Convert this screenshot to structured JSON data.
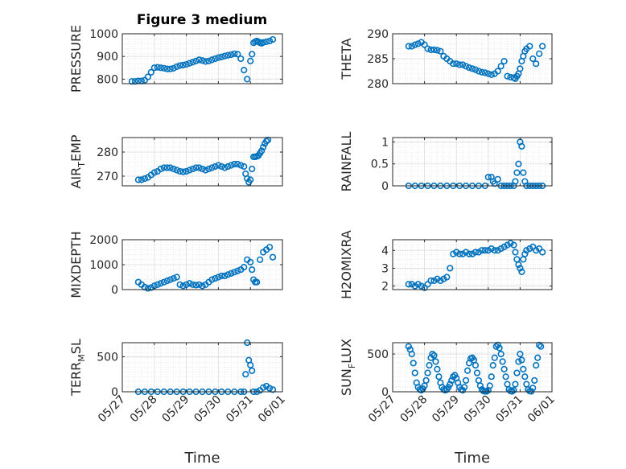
{
  "figure": {
    "title": "Figure 3 medium",
    "x_tick_labels": [
      "05/27",
      "05/28",
      "05/29",
      "05/30",
      "05/31",
      "06/01"
    ],
    "xlabel": "Time",
    "marker_color": "#0072BD",
    "grid_color": "#d9d9d9",
    "axis_color": "#262626"
  },
  "chart_data": [
    {
      "type": "scatter",
      "ylabel_main": "PRESSURE",
      "ylabel_sub": "",
      "xlim": [
        0,
        5
      ],
      "ylim": [
        780,
        1000
      ],
      "yticks": [
        800,
        900,
        1000
      ],
      "ytick_labels": [
        "800",
        "900",
        "1000"
      ],
      "x": [
        0.3,
        0.4,
        0.5,
        0.6,
        0.7,
        0.8,
        0.9,
        1.0,
        1.1,
        1.2,
        1.3,
        1.4,
        1.5,
        1.6,
        1.7,
        1.8,
        1.9,
        2.0,
        2.1,
        2.2,
        2.3,
        2.4,
        2.5,
        2.6,
        2.7,
        2.8,
        2.9,
        3.0,
        3.1,
        3.2,
        3.3,
        3.4,
        3.5,
        3.6,
        3.7,
        3.8,
        3.9,
        4.0,
        4.05,
        4.1,
        4.15,
        4.2,
        4.25,
        4.3,
        4.35,
        4.4,
        4.5,
        4.6,
        4.7
      ],
      "y": [
        790,
        790,
        792,
        792,
        795,
        810,
        830,
        850,
        852,
        850,
        848,
        845,
        845,
        848,
        855,
        860,
        862,
        865,
        870,
        875,
        880,
        885,
        882,
        878,
        880,
        885,
        890,
        895,
        898,
        902,
        905,
        908,
        912,
        910,
        890,
        840,
        800,
        880,
        910,
        960,
        965,
        968,
        965,
        960,
        958,
        962,
        965,
        968,
        975
      ]
    },
    {
      "type": "scatter",
      "ylabel_main": "THETA",
      "ylabel_sub": "",
      "xlim": [
        0,
        5
      ],
      "ylim": [
        280,
        290
      ],
      "yticks": [
        280,
        285,
        290
      ],
      "ytick_labels": [
        "280",
        "285",
        "290"
      ],
      "x": [
        0.5,
        0.6,
        0.7,
        0.8,
        0.9,
        1.0,
        1.1,
        1.2,
        1.3,
        1.4,
        1.5,
        1.6,
        1.7,
        1.8,
        1.9,
        2.0,
        2.1,
        2.2,
        2.3,
        2.4,
        2.5,
        2.6,
        2.7,
        2.8,
        2.9,
        3.0,
        3.1,
        3.2,
        3.3,
        3.4,
        3.5,
        3.6,
        3.7,
        3.8,
        3.85,
        3.9,
        3.95,
        4.0,
        4.05,
        4.1,
        4.15,
        4.2,
        4.3,
        4.4,
        4.5,
        4.6,
        4.7
      ],
      "y": [
        287.5,
        287.5,
        287.8,
        288.0,
        288.3,
        287.8,
        287.0,
        286.8,
        286.8,
        286.7,
        286.5,
        285.5,
        285.0,
        284.5,
        284.0,
        284.0,
        283.8,
        283.8,
        283.5,
        283.2,
        283.0,
        282.8,
        282.5,
        282.3,
        282.2,
        282.0,
        281.8,
        282.0,
        282.5,
        283.5,
        284.5,
        281.5,
        281.3,
        281.2,
        281.0,
        281.5,
        282.0,
        283.0,
        284.5,
        285.5,
        286.5,
        287.0,
        287.5,
        285.0,
        284.0,
        286.0,
        287.5
      ]
    },
    {
      "type": "scatter",
      "ylabel_main": "AIR",
      "ylabel_sub": "TEMP",
      "xlim": [
        0,
        5
      ],
      "ylim": [
        266,
        286
      ],
      "yticks": [
        270,
        280
      ],
      "ytick_labels": [
        "270",
        "280"
      ],
      "x": [
        0.5,
        0.6,
        0.7,
        0.8,
        0.9,
        1.0,
        1.1,
        1.2,
        1.3,
        1.4,
        1.5,
        1.6,
        1.7,
        1.8,
        1.9,
        2.0,
        2.1,
        2.2,
        2.3,
        2.4,
        2.5,
        2.6,
        2.7,
        2.8,
        2.9,
        3.0,
        3.1,
        3.2,
        3.3,
        3.4,
        3.5,
        3.6,
        3.7,
        3.8,
        3.85,
        3.9,
        3.95,
        4.0,
        4.05,
        4.1,
        4.15,
        4.2,
        4.25,
        4.3,
        4.35,
        4.4,
        4.45,
        4.5,
        4.55
      ],
      "y": [
        268.5,
        268.5,
        269,
        269.5,
        270.5,
        271.5,
        272,
        273,
        273.5,
        273.5,
        273.5,
        273,
        272.5,
        272,
        271.8,
        272,
        272.5,
        273,
        273.5,
        273.5,
        273,
        272.5,
        273,
        273.5,
        274,
        274.5,
        274,
        273.5,
        274,
        274.5,
        275,
        275,
        274.5,
        274,
        271,
        269,
        267.5,
        268.5,
        273,
        278,
        278,
        278.2,
        278.5,
        279.5,
        280.5,
        282,
        283.5,
        284.5,
        285
      ]
    },
    {
      "type": "scatter",
      "ylabel_main": "RAINFALL",
      "ylabel_sub": "",
      "xlim": [
        0,
        5
      ],
      "ylim": [
        0,
        1.1
      ],
      "yticks": [
        0,
        0.5,
        1
      ],
      "ytick_labels": [
        "0",
        "0.5",
        "1"
      ],
      "x": [
        0.5,
        0.7,
        0.9,
        1.1,
        1.3,
        1.5,
        1.7,
        1.9,
        2.1,
        2.3,
        2.5,
        2.7,
        2.9,
        3.0,
        3.1,
        3.15,
        3.2,
        3.3,
        3.4,
        3.5,
        3.6,
        3.7,
        3.8,
        3.85,
        3.9,
        3.95,
        4.0,
        4.05,
        4.1,
        4.15,
        4.2,
        4.3,
        4.4,
        4.5,
        4.6,
        4.7
      ],
      "y": [
        0,
        0,
        0,
        0,
        0,
        0,
        0,
        0,
        0,
        0,
        0,
        0,
        0,
        0.2,
        0.2,
        0.1,
        0.05,
        0.15,
        0,
        0,
        0,
        0,
        0,
        0.1,
        0.3,
        0.5,
        1.0,
        0.9,
        0.3,
        0.1,
        0,
        0,
        0,
        0,
        0,
        0
      ]
    },
    {
      "type": "scatter",
      "ylabel_main": "MIXDEPTH",
      "ylabel_sub": "",
      "xlim": [
        0,
        5
      ],
      "ylim": [
        0,
        2000
      ],
      "yticks": [
        0,
        1000,
        2000
      ],
      "ytick_labels": [
        "0",
        "1000",
        "2000"
      ],
      "x": [
        0.5,
        0.6,
        0.7,
        0.8,
        0.9,
        1.0,
        1.1,
        1.2,
        1.3,
        1.4,
        1.5,
        1.6,
        1.7,
        1.8,
        1.9,
        2.0,
        2.1,
        2.2,
        2.3,
        2.4,
        2.5,
        2.6,
        2.7,
        2.8,
        2.9,
        3.0,
        3.1,
        3.2,
        3.3,
        3.4,
        3.5,
        3.6,
        3.7,
        3.8,
        3.9,
        4.0,
        4.05,
        4.1,
        4.15,
        4.2,
        4.3,
        4.4,
        4.5,
        4.6,
        4.7
      ],
      "y": [
        300,
        200,
        100,
        50,
        80,
        150,
        200,
        250,
        300,
        350,
        400,
        450,
        500,
        200,
        150,
        200,
        250,
        200,
        180,
        200,
        150,
        200,
        300,
        400,
        450,
        500,
        550,
        550,
        600,
        650,
        700,
        750,
        800,
        900,
        1200,
        1100,
        800,
        400,
        300,
        300,
        1200,
        1500,
        1600,
        1700,
        1300
      ]
    },
    {
      "type": "scatter",
      "ylabel_main": "H2OMIXRA",
      "ylabel_sub": "",
      "xlim": [
        0,
        5
      ],
      "ylim": [
        1.8,
        4.6
      ],
      "yticks": [
        2,
        3,
        4
      ],
      "ytick_labels": [
        "2",
        "3",
        "4"
      ],
      "x": [
        0.5,
        0.6,
        0.7,
        0.8,
        0.9,
        1.0,
        1.1,
        1.2,
        1.3,
        1.4,
        1.5,
        1.6,
        1.7,
        1.8,
        1.9,
        2.0,
        2.1,
        2.2,
        2.3,
        2.4,
        2.5,
        2.6,
        2.7,
        2.8,
        2.9,
        3.0,
        3.1,
        3.2,
        3.3,
        3.4,
        3.5,
        3.6,
        3.7,
        3.8,
        3.85,
        3.9,
        3.95,
        4.0,
        4.05,
        4.1,
        4.15,
        4.2,
        4.3,
        4.4,
        4.5,
        4.6,
        4.7
      ],
      "y": [
        2.1,
        2.1,
        2.0,
        2.1,
        2.0,
        1.9,
        2.1,
        2.3,
        2.3,
        2.4,
        2.3,
        2.4,
        2.5,
        3.0,
        3.8,
        3.9,
        3.8,
        3.8,
        3.9,
        3.8,
        3.8,
        3.9,
        3.9,
        4.0,
        4.0,
        4.0,
        4.1,
        4.0,
        4.0,
        4.1,
        4.2,
        4.3,
        4.4,
        4.3,
        3.9,
        3.5,
        3.2,
        3.0,
        2.8,
        3.5,
        3.8,
        4.0,
        4.1,
        4.2,
        4.0,
        4.1,
        3.9
      ]
    },
    {
      "type": "scatter",
      "ylabel_main": "TERR",
      "ylabel_sub": "MSL",
      "xlim": [
        0,
        5
      ],
      "ylim": [
        0,
        700
      ],
      "yticks": [
        0,
        500
      ],
      "ytick_labels": [
        "0",
        "500"
      ],
      "x": [
        0.5,
        0.7,
        0.9,
        1.1,
        1.3,
        1.5,
        1.7,
        1.9,
        2.1,
        2.3,
        2.5,
        2.7,
        2.9,
        3.1,
        3.3,
        3.5,
        3.7,
        3.8,
        3.85,
        3.9,
        3.95,
        4.0,
        4.05,
        4.1,
        4.2,
        4.3,
        4.4,
        4.5,
        4.6,
        4.7
      ],
      "y": [
        0,
        0,
        0,
        0,
        0,
        0,
        0,
        0,
        0,
        0,
        0,
        0,
        0,
        0,
        0,
        0,
        0,
        0,
        250,
        700,
        450,
        380,
        300,
        0,
        0,
        20,
        60,
        80,
        50,
        30
      ]
    },
    {
      "type": "scatter",
      "ylabel_main": "SUN",
      "ylabel_sub": "FLUX",
      "xlim": [
        0,
        5
      ],
      "ylim": [
        0,
        650
      ],
      "yticks": [
        0,
        500
      ],
      "ytick_labels": [
        "0",
        "500"
      ],
      "x": [
        0.5,
        0.55,
        0.6,
        0.65,
        0.7,
        0.75,
        0.8,
        0.85,
        0.9,
        0.95,
        1.0,
        1.05,
        1.1,
        1.15,
        1.2,
        1.25,
        1.3,
        1.35,
        1.4,
        1.45,
        1.5,
        1.55,
        1.6,
        1.65,
        1.7,
        1.75,
        1.8,
        1.85,
        1.9,
        1.95,
        2.0,
        2.05,
        2.1,
        2.15,
        2.2,
        2.25,
        2.3,
        2.35,
        2.4,
        2.45,
        2.5,
        2.55,
        2.6,
        2.65,
        2.7,
        2.75,
        2.8,
        2.85,
        2.9,
        2.95,
        3.0,
        3.05,
        3.1,
        3.15,
        3.2,
        3.25,
        3.3,
        3.35,
        3.4,
        3.45,
        3.5,
        3.55,
        3.6,
        3.65,
        3.7,
        3.75,
        3.8,
        3.85,
        3.9,
        3.95,
        4.0,
        4.05,
        4.1,
        4.15,
        4.2,
        4.25,
        4.3,
        4.35,
        4.4,
        4.45,
        4.5,
        4.55,
        4.6,
        4.65
      ],
      "y": [
        600,
        560,
        500,
        380,
        250,
        120,
        60,
        30,
        20,
        40,
        80,
        150,
        250,
        350,
        450,
        500,
        480,
        400,
        300,
        200,
        120,
        60,
        30,
        20,
        30,
        60,
        100,
        150,
        200,
        220,
        180,
        120,
        60,
        30,
        20,
        60,
        150,
        280,
        380,
        440,
        450,
        420,
        350,
        250,
        150,
        80,
        30,
        10,
        5,
        5,
        20,
        80,
        200,
        350,
        450,
        600,
        620,
        580,
        500,
        400,
        300,
        200,
        100,
        30,
        10,
        5,
        20,
        100,
        250,
        400,
        500,
        420,
        300,
        200,
        100,
        30,
        10,
        5,
        50,
        150,
        350,
        450,
        620,
        600
      ]
    }
  ]
}
